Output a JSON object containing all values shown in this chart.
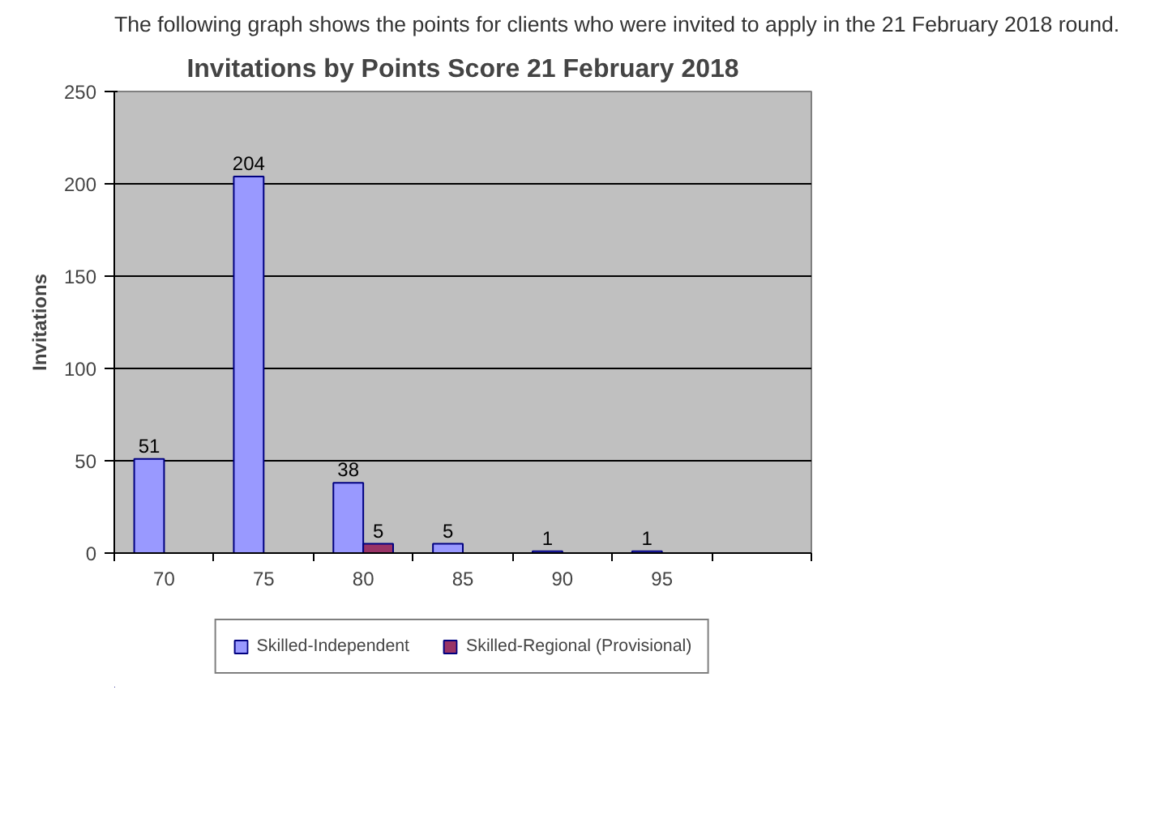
{
  "chart_data": {
    "type": "bar",
    "title": "Invitations by Points Score 21 February 2018",
    "ylabel": "Invitations",
    "annotations": [
      "The following graph shows the points for clients who were invited to apply in the 21 February 2018 round."
    ],
    "categories": [
      "70",
      "75",
      "80",
      "85",
      "90",
      "95",
      null
    ],
    "series": [
      {
        "name": "Skilled-Independent",
        "color": "#9999ff",
        "values": [
          51,
          204,
          38,
          5,
          1,
          1,
          null
        ]
      },
      {
        "name": "Skilled-Regional (Provisional)",
        "color": "#993366",
        "values": [
          null,
          null,
          5,
          null,
          null,
          null,
          null
        ]
      }
    ],
    "ylim": [
      0,
      250
    ],
    "yticks": [
      0,
      50,
      100,
      150,
      200,
      250
    ],
    "grid": "y",
    "legend": "bottom",
    "data_labels": true
  }
}
